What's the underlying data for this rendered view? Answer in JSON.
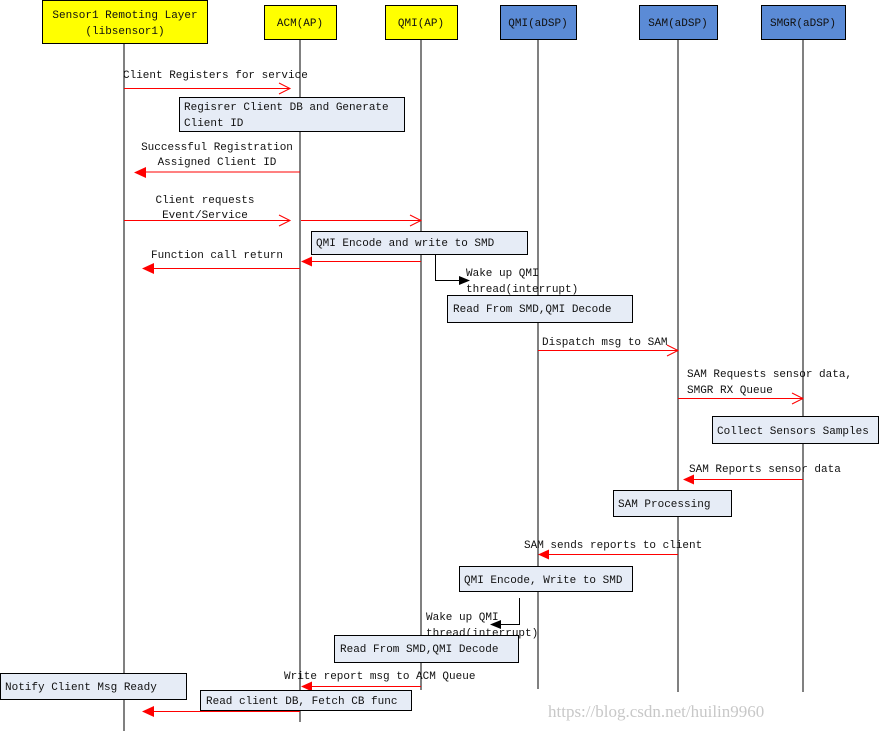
{
  "colors": {
    "participant_ap": "#ffff00",
    "participant_adsp": "#5b8bd6",
    "message": "#ff0000",
    "note": "#e6ecf6"
  },
  "participants": [
    {
      "line1": "Sensor1 Remoting Layer",
      "line2": "(libsensor1)"
    },
    {
      "label": "ACM(AP)"
    },
    {
      "label": "QMI(AP)"
    },
    {
      "label": "QMI(aDSP)"
    },
    {
      "label": "SAM(aDSP)"
    },
    {
      "label": "SMGR(aDSP)"
    }
  ],
  "messages": {
    "client_registers": "Client Registers for service",
    "successful_registration": [
      "Successful Registration",
      "Assigned Client ID"
    ],
    "client_requests": [
      "Client requests",
      "Event/Service"
    ],
    "function_call_return": "Function call return",
    "wake_up_1": [
      "Wake up QMI",
      "thread(interrupt)"
    ],
    "dispatch": "Dispatch msg to SAM",
    "sam_requests": [
      "SAM Requests sensor data,",
      "SMGR RX Queue"
    ],
    "sam_reports": "SAM Reports sensor data",
    "sam_sends": "SAM sends reports to client",
    "wake_up_2": [
      "Wake up QMI",
      "thread(interrupt)"
    ],
    "write_report": "Write report msg to ACM Queue"
  },
  "notes": {
    "register_db": [
      "Regisrer Client DB and Generate",
      "Client ID"
    ],
    "qmi_encode_write": "QMI Encode and write to SMD",
    "read_smd_1": "Read From SMD,QMI Decode",
    "collect_samples": "Collect Sensors Samples",
    "sam_processing": "SAM Processing",
    "qmi_encode_write_2": "QMI Encode, Write to SMD",
    "read_smd_2": "Read From SMD,QMI Decode",
    "notify_client": "Notify Client Msg Ready",
    "read_client_db": "Read client DB, Fetch CB func"
  },
  "watermark": "https://blog.csdn.net/huilin9960"
}
